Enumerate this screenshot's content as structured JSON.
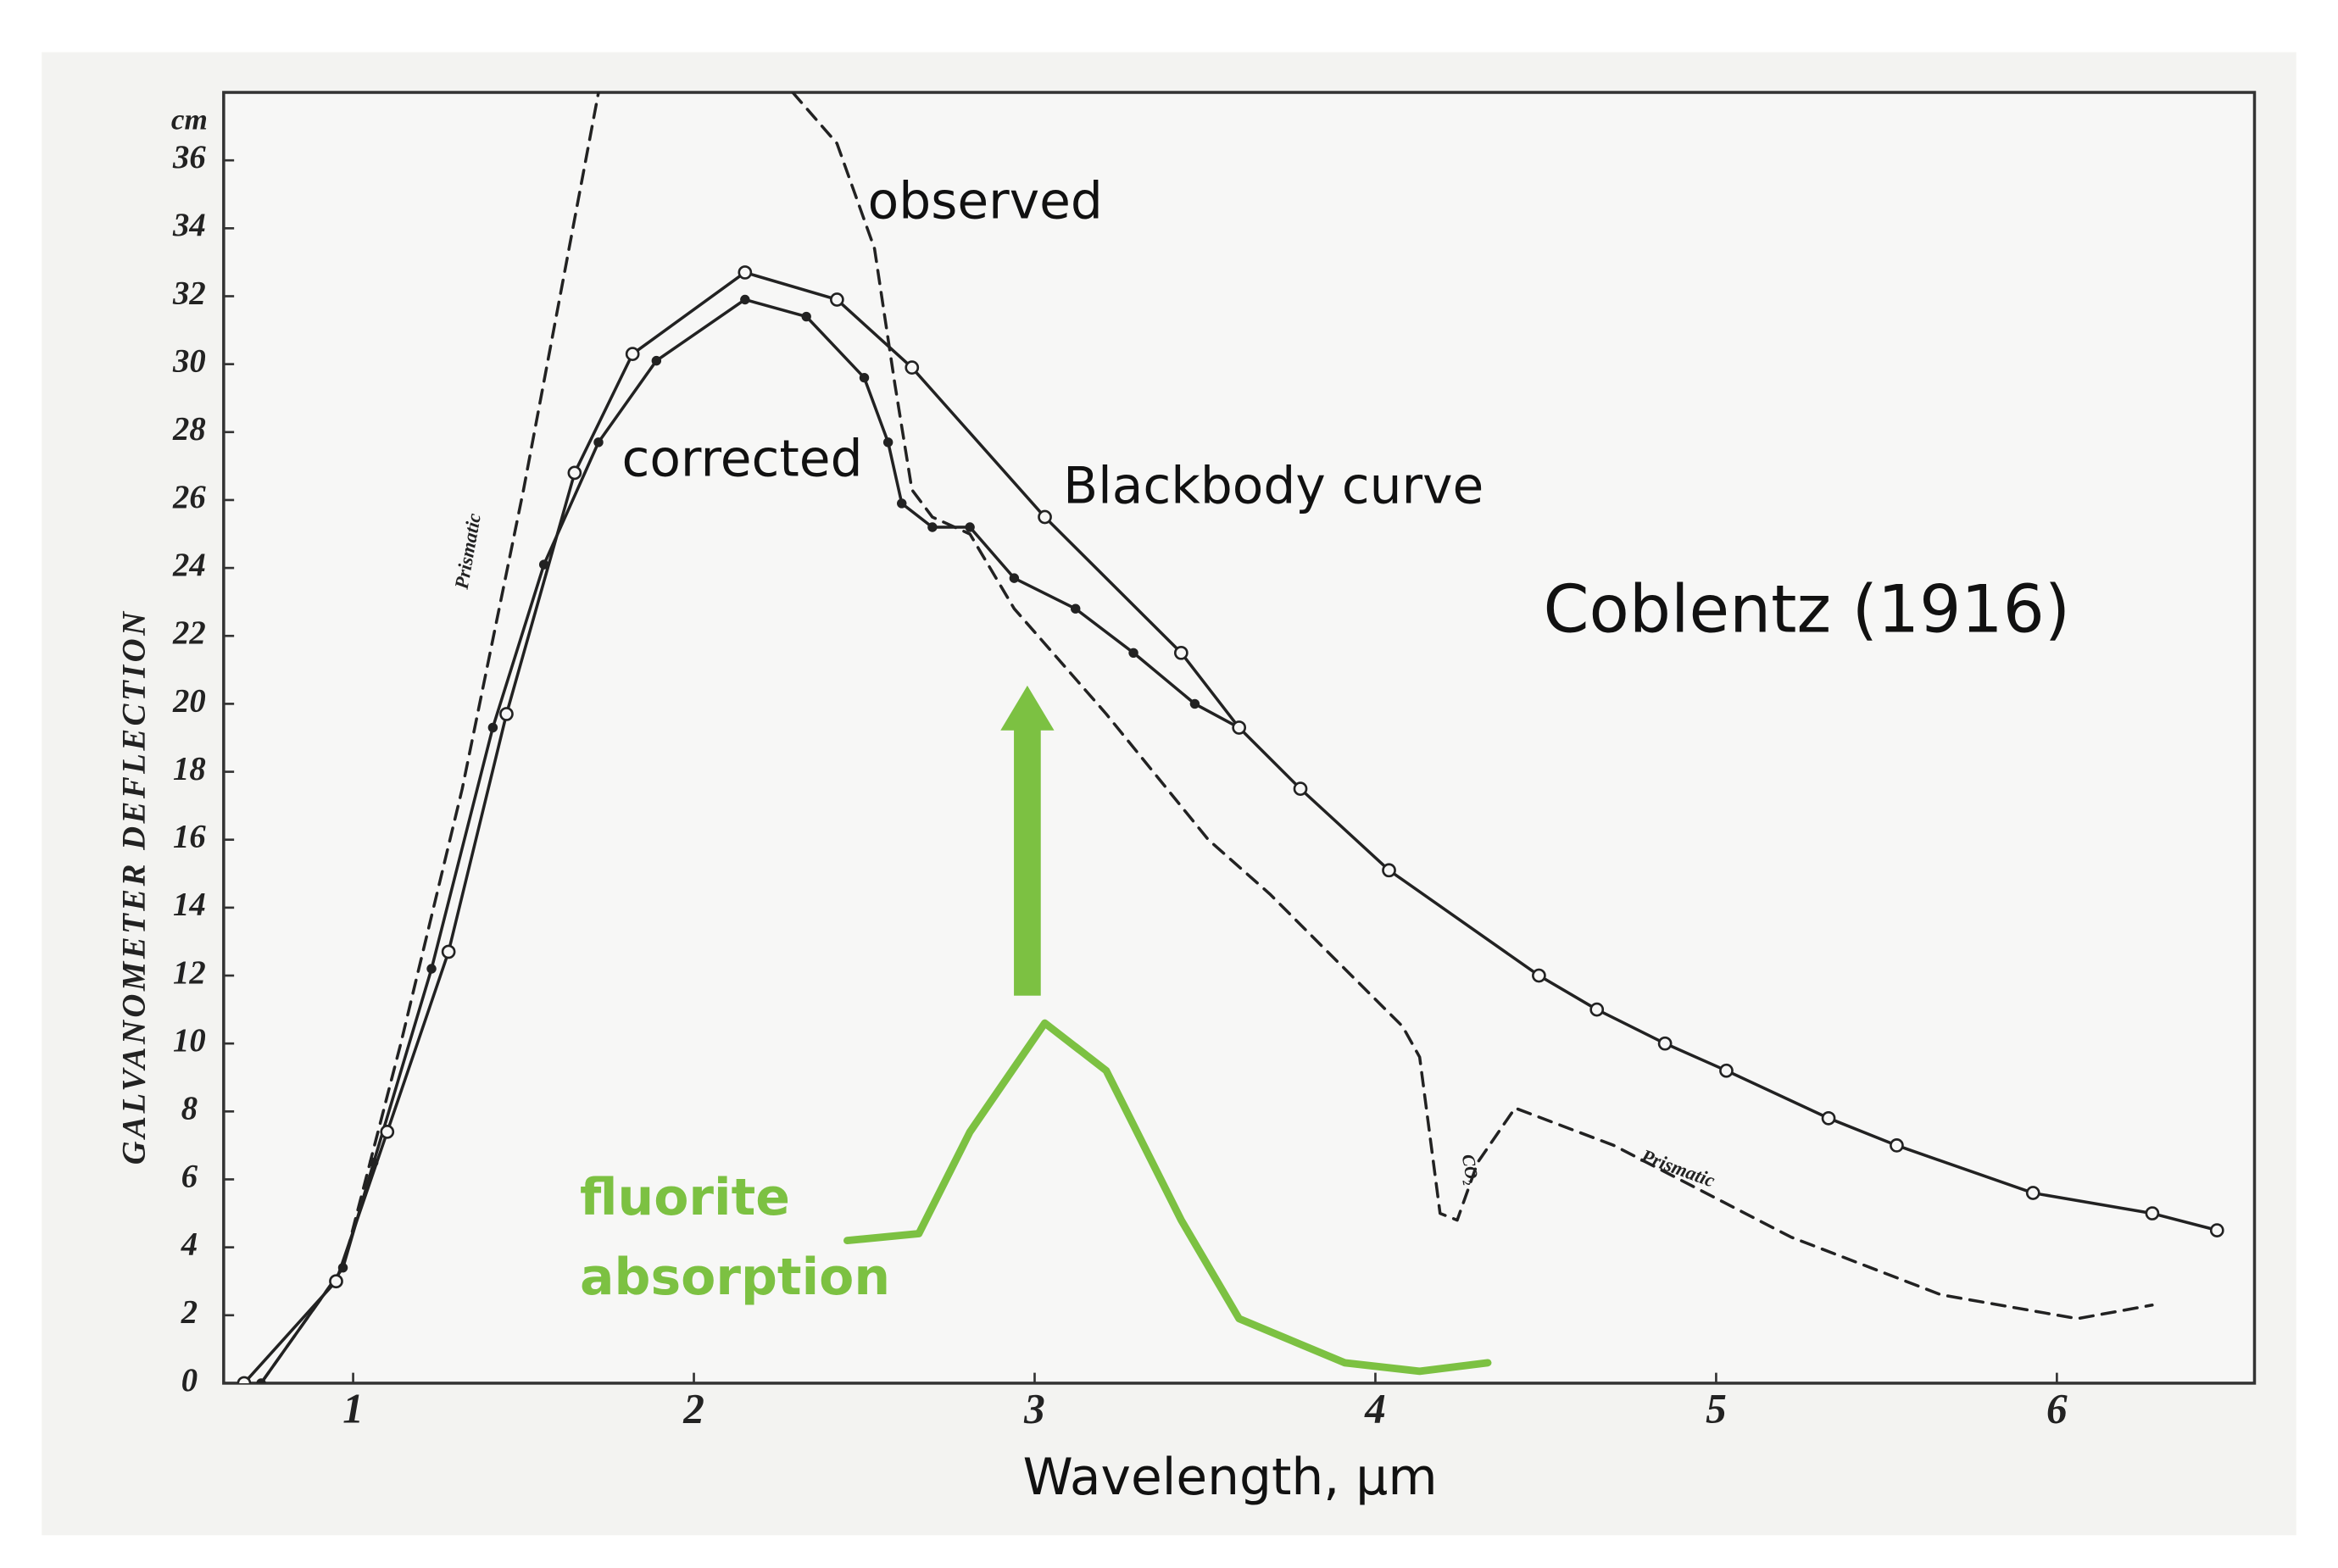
{
  "chart_data": {
    "type": "line",
    "ylabel": "GALVANOMETER DEFLECTION",
    "y_unit": "cm",
    "xlabel": "Wavelength, µm",
    "xlim": [
      0.62,
      6.58
    ],
    "xticks": [
      1,
      2,
      3,
      4,
      5,
      6
    ],
    "ylim": [
      0,
      38
    ],
    "yticks": [
      0,
      2,
      4,
      6,
      8,
      10,
      12,
      14,
      16,
      18,
      20,
      22,
      24,
      26,
      28,
      30,
      32,
      34,
      36
    ],
    "annotations": [
      "Coblentz (1916)",
      "Prismatic",
      "Prismatic",
      "CO₂"
    ],
    "series": [
      {
        "name": "observed",
        "color": "#222222",
        "dash": true,
        "marker": "none",
        "x": [
          0.73,
          0.97,
          1.14,
          1.32,
          1.5,
          1.72,
          2.0,
          2.29,
          2.42,
          2.53,
          2.59,
          2.64,
          2.7,
          2.81,
          2.94,
          3.21,
          3.51,
          3.69,
          3.86,
          4.08,
          4.13,
          4.19,
          4.24,
          4.3,
          4.41,
          4.7,
          5.22,
          5.66,
          6.06,
          6.28
        ],
        "values": [
          0,
          3.4,
          10,
          17.5,
          26.3,
          38,
          null,
          38,
          36.5,
          33.4,
          29.4,
          26.3,
          25.5,
          25,
          22.8,
          19.7,
          16,
          14.4,
          12.7,
          10.5,
          9.6,
          5,
          4.8,
          6.5,
          8.1,
          7,
          4.3,
          2.6,
          1.9,
          2.3
        ]
      },
      {
        "name": "corrected",
        "color": "#222222",
        "dash": false,
        "marker": "dot",
        "x": [
          0.73,
          0.97,
          1.06,
          1.23,
          1.41,
          1.56,
          1.72,
          1.89,
          2.15,
          2.33,
          2.5,
          2.57,
          2.61,
          2.7,
          2.81,
          2.94,
          3.12,
          3.29,
          3.47,
          3.6
        ],
        "values": [
          0,
          3.4,
          6.5,
          12.2,
          19.3,
          24.1,
          27.7,
          30.1,
          31.9,
          31.4,
          29.6,
          27.7,
          25.9,
          25.2,
          25.2,
          23.7,
          22.8,
          21.5,
          20,
          19.3
        ]
      },
      {
        "name": "Blackbody curve",
        "color": "#222222",
        "dash": false,
        "marker": "circle",
        "x": [
          0.68,
          0.95,
          1.1,
          1.28,
          1.45,
          1.65,
          1.82,
          2.15,
          2.42,
          2.64,
          3.03,
          3.43,
          3.6,
          3.78,
          4.04,
          4.48,
          4.65,
          4.85,
          5.03,
          5.33,
          5.53,
          5.93,
          6.28,
          6.47
        ],
        "values": [
          0,
          3,
          7.4,
          12.7,
          19.7,
          26.8,
          30.3,
          32.7,
          31.9,
          29.9,
          25.5,
          21.5,
          19.3,
          17.5,
          15.1,
          12,
          11,
          10,
          9.2,
          7.8,
          7,
          5.6,
          5,
          4.5
        ]
      },
      {
        "name": "fluorite absorption",
        "color": "#7cc142",
        "dash": false,
        "marker": "none",
        "x": [
          2.45,
          2.66,
          2.81,
          3.03,
          3.21,
          3.43,
          3.6,
          3.91,
          4.13,
          4.33
        ],
        "values": [
          4.2,
          4.4,
          7.4,
          10.6,
          9.2,
          4.8,
          1.9,
          0.6,
          0.35,
          0.6
        ]
      }
    ]
  }
}
